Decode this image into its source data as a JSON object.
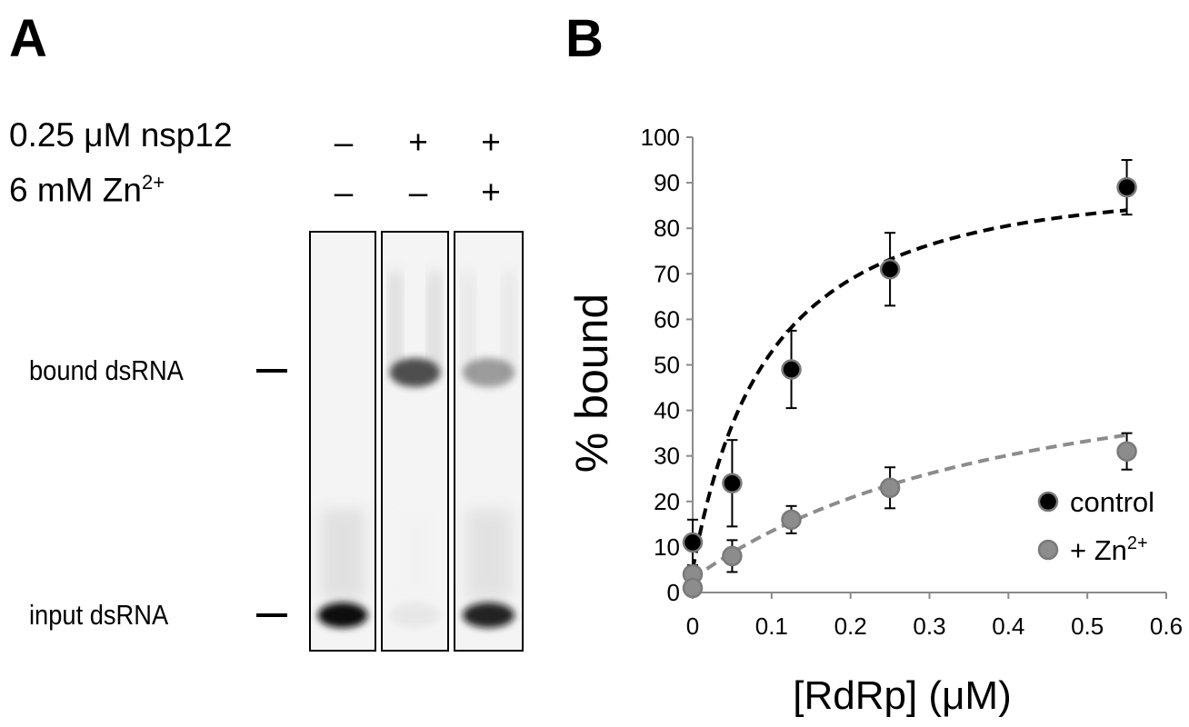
{
  "panel_a": {
    "letter": "A",
    "conditions": [
      {
        "label": "0.25 μM nsp12",
        "lanes": [
          "–",
          "+",
          "+"
        ]
      },
      {
        "label": "6 mM Zn",
        "label_sup": "2+",
        "lanes": [
          "–",
          "–",
          "+"
        ]
      }
    ],
    "band_labels": {
      "bound": "bound dsRNA",
      "input": "input dsRNA"
    },
    "lanes": [
      {
        "bound_intensity": 0.0,
        "input_intensity": 1.0
      },
      {
        "bound_intensity": 0.85,
        "input_intensity": 0.05
      },
      {
        "bound_intensity": 0.45,
        "input_intensity": 0.9
      }
    ]
  },
  "panel_b": {
    "letter": "B"
  },
  "chart_data": {
    "type": "scatter",
    "xlabel": "[RdRp] (μM)",
    "ylabel": "% bound",
    "xlim": [
      0,
      0.6
    ],
    "ylim": [
      0,
      100
    ],
    "xticks": [
      "0",
      "0.1",
      "0.2",
      "0.3",
      "0.4",
      "0.5",
      "0.6"
    ],
    "yticks": [
      "0",
      "10",
      "20",
      "30",
      "40",
      "50",
      "60",
      "70",
      "80",
      "90",
      "100"
    ],
    "grid": false,
    "legend_position": "bottom-right",
    "series": [
      {
        "name": "control",
        "color": "#000000",
        "x": [
          0,
          0.05,
          0.125,
          0.25,
          0.55
        ],
        "y": [
          11,
          24,
          49,
          71,
          89
        ],
        "err": [
          5,
          9.5,
          8.5,
          8,
          6
        ],
        "fit": {
          "style": "dashed",
          "kd": 0.105,
          "bmax": 100
        }
      },
      {
        "name": "+ Zn",
        "name_sup": "2+",
        "color": "#8c8c8c",
        "x": [
          0,
          0.05,
          0.125,
          0.25,
          0.55
        ],
        "y": [
          4,
          8,
          16,
          23,
          31
        ],
        "err": [
          2,
          3.5,
          3,
          4.5,
          4
        ],
        "extra_points": [
          {
            "x": 0,
            "y": 1
          }
        ],
        "fit": {
          "style": "dashed",
          "kd": 0.5,
          "bmax": 66
        }
      }
    ]
  }
}
